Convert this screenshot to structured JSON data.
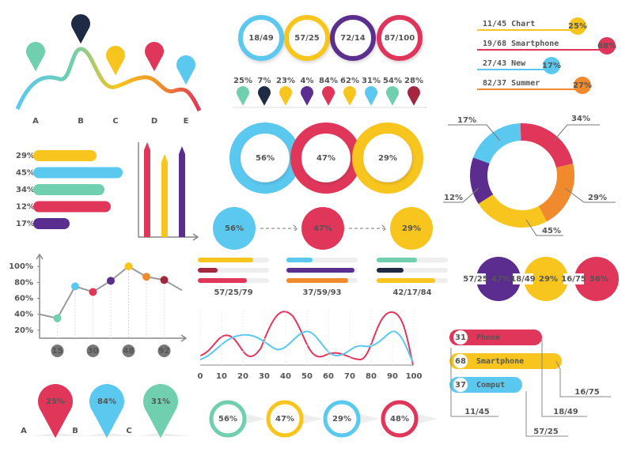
{
  "wave_pins": {
    "letters": [
      "A",
      "B",
      "C",
      "D",
      "E"
    ]
  },
  "ratio_circles": {
    "labels": [
      "18/49",
      "57/25",
      "72/14",
      "87/100"
    ]
  },
  "pin_row": {
    "labels": [
      "25%",
      "7%",
      "23%",
      "4%",
      "84%",
      "62%",
      "31%",
      "54%",
      "28%"
    ]
  },
  "tags": [
    {
      "text": "11/45 Chart",
      "badge": "25%"
    },
    {
      "text": "19/68 Smartphone",
      "badge": "68%"
    },
    {
      "text": "27/43 New",
      "badge": "17%"
    },
    {
      "text": "82/37 Summer",
      "badge": "27%"
    }
  ],
  "bar_list": {
    "labels": [
      "29%",
      "45%",
      "34%",
      "12%",
      "17%"
    ]
  },
  "rings": {
    "labels": [
      "56%",
      "47%",
      "29%"
    ]
  },
  "donut": {
    "labels": [
      "17%",
      "34%",
      "29%",
      "45%",
      "12%"
    ]
  },
  "flow": {
    "labels": [
      "56%",
      "47%",
      "29%"
    ]
  },
  "progress": {
    "captions": [
      "57/25/79",
      "37/59/93",
      "42/17/84"
    ]
  },
  "trio": [
    {
      "caption": "57/25",
      "label": "47%"
    },
    {
      "caption": "18/49",
      "label": "29%"
    },
    {
      "caption": "16/75",
      "label": "56%"
    }
  ],
  "chart_data": {
    "type": "line",
    "categories": [
      null,
      "15",
      null,
      "30",
      null,
      "48",
      null,
      "92",
      null
    ],
    "values": [
      40,
      35,
      75,
      68,
      82,
      100,
      87,
      83,
      70
    ],
    "point_colors": [
      null,
      "#6fcfae",
      "#5bc8f0",
      "#e0365a",
      "#5b2d8e",
      "#f7c51e",
      "#f08a2c",
      "#a3273f",
      null
    ],
    "color": "#9a9a9a",
    "ylim": [
      10,
      115
    ],
    "yticks": [
      {
        "value": 20,
        "label": "20%"
      },
      {
        "value": 40,
        "label": "40%"
      },
      {
        "value": 60,
        "label": "60%"
      },
      {
        "value": 80,
        "label": "80%"
      },
      {
        "value": 100,
        "label": "100%"
      }
    ]
  },
  "wave_chart": {
    "xlim": [
      0,
      100
    ],
    "xticks": [
      0,
      10,
      20,
      30,
      40,
      50,
      60,
      70,
      80,
      90,
      100
    ]
  },
  "bottom_pins": {
    "labels": [
      "25%",
      "84%",
      "31%"
    ],
    "letters": [
      "A",
      "B",
      "C"
    ]
  },
  "bottom_circles": {
    "labels": [
      "56%",
      "47%",
      "29%",
      "48%"
    ]
  },
  "callouts": {
    "items": [
      {
        "number": "31",
        "text": "Phone"
      },
      {
        "number": "68",
        "text": "Smartphone"
      },
      {
        "number": "37",
        "text": "Comput"
      }
    ],
    "notes": [
      "16/75",
      "18/49",
      "11/45",
      "57/25"
    ]
  }
}
